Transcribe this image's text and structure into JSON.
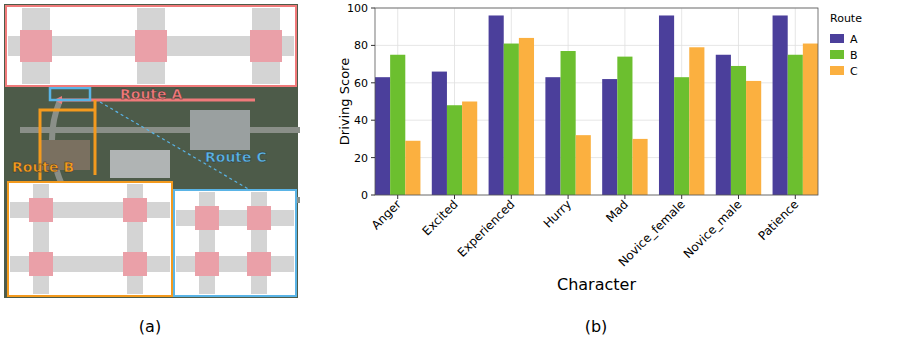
{
  "panel_labels": [
    "(a)",
    "(b)"
  ],
  "map": {
    "routes": [
      {
        "name": "Route A",
        "color": "#f07a7a"
      },
      {
        "name": "Route B",
        "color": "#f39a1e"
      },
      {
        "name": "Route C",
        "color": "#5ab4e6"
      }
    ]
  },
  "chart_data": {
    "type": "bar",
    "x_label": "Character",
    "y_label": "Driving Score",
    "categories": [
      "Anger",
      "Excited",
      "Experienced",
      "Hurry",
      "Mad",
      "Novice_female",
      "Novice_male",
      "Patience"
    ],
    "series": [
      {
        "name": "A",
        "color": "#4b3f9b",
        "values": [
          63,
          66,
          96,
          63,
          62,
          96,
          75,
          96
        ]
      },
      {
        "name": "B",
        "color": "#6cbf2f",
        "values": [
          75,
          48,
          81,
          77,
          74,
          63,
          69,
          75
        ]
      },
      {
        "name": "C",
        "color": "#fbb040",
        "values": [
          29,
          50,
          84,
          32,
          30,
          79,
          61,
          81
        ]
      }
    ],
    "legend_title": "Route",
    "legend": "right",
    "ylim": [
      0,
      100
    ],
    "yticks": [
      0,
      20,
      40,
      60,
      80,
      100
    ],
    "grid": true
  }
}
